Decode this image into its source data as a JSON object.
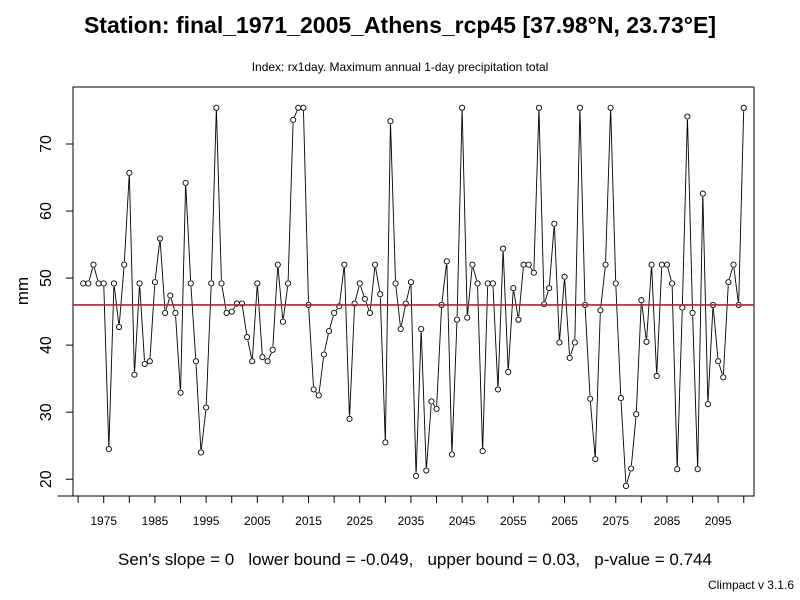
{
  "header": {
    "title": "Station: final_1971_2005_Athens_rcp45 [37.98°N, 23.73°E]",
    "subtitle": "Index: rx1day. Maximum annual 1-day precipitation total"
  },
  "footer": {
    "stats": "Sen's slope = 0   lower bound = -0.049,   upper bound = 0.03,   p-value = 0.744",
    "version": "Climpact v 3.1.6"
  },
  "colors": {
    "line": "#000000",
    "points": "#000000",
    "mean_line": "#b22234"
  },
  "chart_data": {
    "type": "line",
    "title": "Station: final_1971_2005_Athens_rcp45 [37.98°N, 23.73°E]",
    "subtitle": "Index: rx1day. Maximum annual 1-day precipitation total",
    "xlabel": "",
    "ylabel": "mm",
    "xlim": [
      1969,
      2102
    ],
    "ylim": [
      17.5,
      78.5
    ],
    "xticks": [
      1975,
      1985,
      1995,
      2005,
      2015,
      2025,
      2035,
      2045,
      2055,
      2065,
      2075,
      2085,
      2095
    ],
    "yticks": [
      20,
      30,
      40,
      50,
      60,
      70
    ],
    "grid": false,
    "mean_line": 46,
    "series": [
      {
        "name": "",
        "x": [
          1971,
          1972,
          1973,
          1974,
          1975,
          1976,
          1977,
          1978,
          1979,
          1980,
          1981,
          1982,
          1983,
          1984,
          1985,
          1986,
          1987,
          1988,
          1989,
          1990,
          1991,
          1992,
          1993,
          1994,
          1995,
          1996,
          1997,
          1998,
          1999,
          2000,
          2001,
          2002,
          2003,
          2004,
          2005,
          2006,
          2007,
          2008,
          2009,
          2010,
          2011,
          2012,
          2013,
          2014,
          2015,
          2016,
          2017,
          2018,
          2019,
          2020,
          2021,
          2022,
          2023,
          2024,
          2025,
          2026,
          2027,
          2028,
          2029,
          2030,
          2031,
          2032,
          2033,
          2034,
          2035,
          2036,
          2037,
          2038,
          2039,
          2040,
          2041,
          2042,
          2043,
          2044,
          2045,
          2046,
          2047,
          2048,
          2049,
          2050,
          2051,
          2052,
          2053,
          2054,
          2055,
          2056,
          2057,
          2058,
          2059,
          2060,
          2061,
          2062,
          2063,
          2064,
          2065,
          2066,
          2067,
          2068,
          2069,
          2070,
          2071,
          2072,
          2073,
          2074,
          2075,
          2076,
          2077,
          2078,
          2079,
          2080,
          2081,
          2082,
          2083,
          2084,
          2085,
          2086,
          2087,
          2088,
          2089,
          2090,
          2091,
          2092,
          2093,
          2094,
          2095,
          2096,
          2097,
          2098,
          2099,
          2100
        ],
        "values": [
          49.2,
          49.2,
          52,
          49.2,
          49.2,
          24.5,
          49.2,
          42.7,
          52,
          65.7,
          35.6,
          49.2,
          37.2,
          37.6,
          49.4,
          55.9,
          44.8,
          47.4,
          44.8,
          32.9,
          64.2,
          49.2,
          37.6,
          24,
          30.7,
          49.2,
          75.4,
          49.2,
          44.8,
          45,
          46.2,
          46.2,
          41.2,
          37.6,
          49.2,
          38.2,
          37.6,
          39.3,
          52,
          43.5,
          49.2,
          73.6,
          75.4,
          75.4,
          46,
          33.4,
          32.5,
          38.6,
          42.1,
          44.8,
          45.8,
          52,
          29,
          46.2,
          49.2,
          46.9,
          44.8,
          52,
          47.6,
          25.5,
          73.4,
          49.2,
          42.4,
          46.2,
          49.4,
          20.5,
          42.4,
          21.3,
          31.6,
          30.5,
          46,
          52.5,
          23.7,
          43.8,
          75.4,
          44.1,
          52,
          49.2,
          24.2,
          49.2,
          49.2,
          33.4,
          54.4,
          36,
          48.5,
          43.8,
          52,
          52,
          50.8,
          75.4,
          46.1,
          48.5,
          58.1,
          40.4,
          50.2,
          38.1,
          40.4,
          75.4,
          46,
          32,
          23,
          45.2,
          52,
          75.4,
          49.2,
          32.1,
          19,
          21.6,
          29.7,
          46.7,
          40.5,
          52,
          35.4,
          52,
          52,
          49.2,
          21.5,
          45.6,
          74.1,
          44.8,
          21.5,
          62.6,
          31.2,
          46,
          37.6,
          35.2,
          49.4,
          52,
          46,
          75.4
        ]
      }
    ]
  }
}
